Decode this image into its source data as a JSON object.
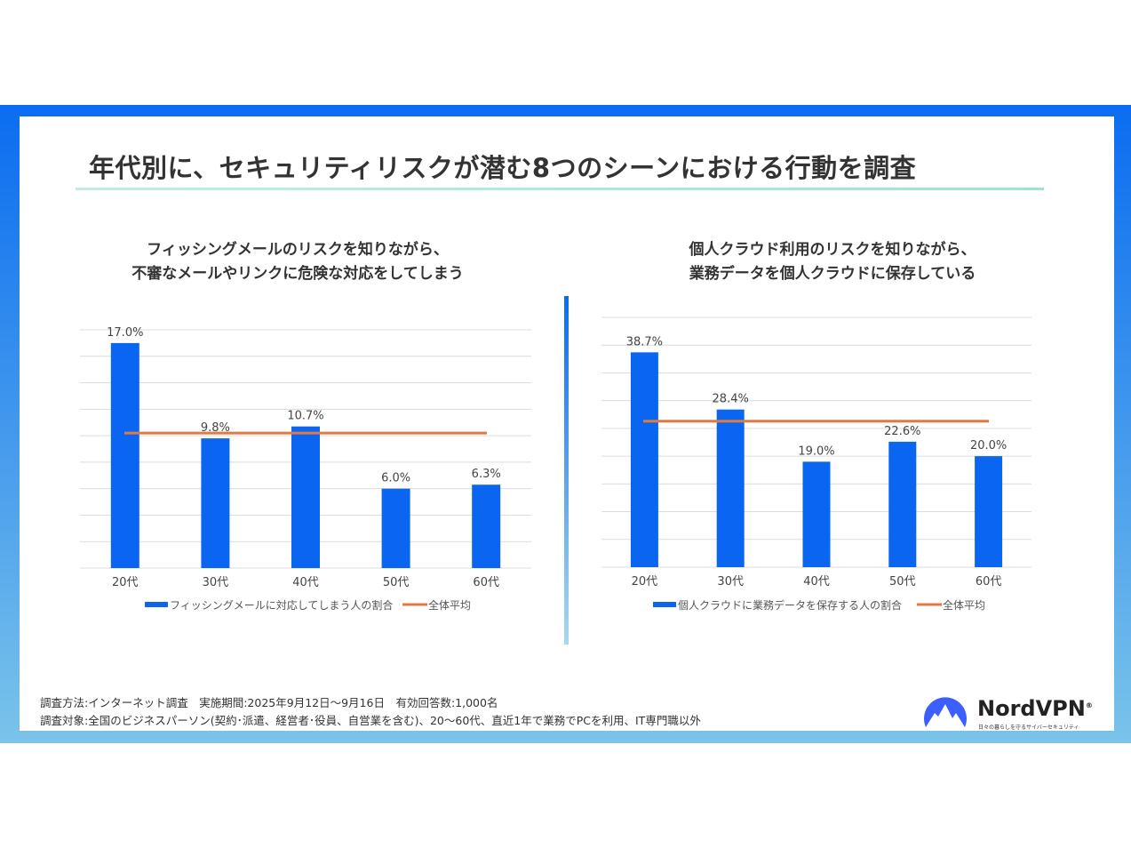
{
  "title": "年代別に、セキュリティリスクが潜む8つのシーンにおける行動を調査",
  "chart_data": [
    {
      "type": "bar",
      "title_lines": [
        "フィッシングメールのリスクを知りながら、",
        "不審なメールやリンクに危険な対応をしてしまう"
      ],
      "categories": [
        "20代",
        "30代",
        "40代",
        "50代",
        "60代"
      ],
      "series": [
        {
          "name": "フィッシングメールに対応してしまう人の割合",
          "values": [
            17.0,
            9.8,
            10.7,
            6.0,
            6.3
          ],
          "labels": [
            "17.0%",
            "9.8%",
            "10.7%",
            "6.0%",
            "6.3%"
          ],
          "color": "#0a66f0"
        }
      ],
      "average": {
        "name": "全体平均",
        "value": 10.2,
        "color": "#e07a45"
      },
      "ylim": [
        0,
        18
      ],
      "ystep": 2,
      "grid": true,
      "legend": "bottom"
    },
    {
      "type": "bar",
      "title_lines": [
        "個人クラウド利用のリスクを知りながら、",
        "業務データを個人クラウドに保存している"
      ],
      "categories": [
        "20代",
        "30代",
        "40代",
        "50代",
        "60代"
      ],
      "series": [
        {
          "name": "個人クラウドに業務データを保存する人の割合",
          "values": [
            38.7,
            28.4,
            19.0,
            22.6,
            20.0
          ],
          "labels": [
            "38.7%",
            "28.4%",
            "19.0%",
            "22.6%",
            "20.0%"
          ],
          "color": "#0a66f0"
        }
      ],
      "average": {
        "name": "全体平均",
        "value": 26.3,
        "color": "#e07a45"
      },
      "ylim": [
        0,
        45
      ],
      "ystep": 5,
      "grid": true,
      "legend": "bottom"
    }
  ],
  "footer": {
    "line1": "調査方法:インターネット調査　実施期間:2025年9月12日～9月16日　有効回答数:1,000名",
    "line2": "調査対象:全国のビジネスパーソン(契約･派遣、経営者･役員、自営業を含む)、20～60代、直近1年で業務でPCを利用、IT専門職以外"
  },
  "brand": {
    "name": "NordVPN",
    "mark": "®",
    "tagline": "日々の暮らしを守るサイバーセキュリティ"
  }
}
